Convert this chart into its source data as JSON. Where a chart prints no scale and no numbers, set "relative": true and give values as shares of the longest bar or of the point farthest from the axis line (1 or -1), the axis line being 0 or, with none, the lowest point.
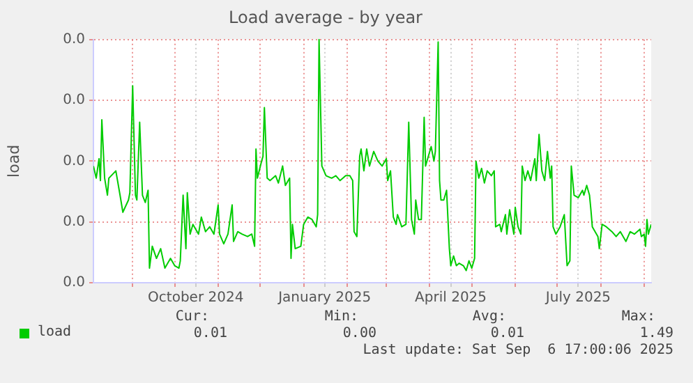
{
  "chart_data": {
    "type": "line",
    "title": "Load average - by year",
    "ylabel": "load",
    "x": [
      "2024-08-04",
      "2024-08-06",
      "2024-08-08",
      "2024-08-09",
      "2024-08-10",
      "2024-08-12",
      "2024-08-14",
      "2024-08-15",
      "2024-08-20",
      "2024-08-23",
      "2024-08-25",
      "2024-08-29",
      "2024-08-30",
      "2024-09-01",
      "2024-09-03",
      "2024-09-04",
      "2024-09-06",
      "2024-09-08",
      "2024-09-10",
      "2024-09-12",
      "2024-09-13",
      "2024-09-15",
      "2024-09-18",
      "2024-09-21",
      "2024-09-24",
      "2024-09-28",
      "2024-10-01",
      "2024-10-04",
      "2024-10-05",
      "2024-10-07",
      "2024-10-09",
      "2024-10-10",
      "2024-10-12",
      "2024-10-14",
      "2024-10-18",
      "2024-10-20",
      "2024-10-23",
      "2024-10-26",
      "2024-10-29",
      "2024-11-01",
      "2024-11-02",
      "2024-11-05",
      "2024-11-08",
      "2024-11-11",
      "2024-11-12",
      "2024-11-15",
      "2024-11-18",
      "2024-11-22",
      "2024-11-25",
      "2024-11-27",
      "2024-11-28",
      "2024-11-29",
      "2024-12-02",
      "2024-12-03",
      "2024-12-04",
      "2024-12-06",
      "2024-12-08",
      "2024-12-12",
      "2024-12-14",
      "2024-12-17",
      "2024-12-19",
      "2024-12-22",
      "2024-12-23",
      "2024-12-24",
      "2024-12-26",
      "2024-12-30",
      "2025-01-01",
      "2025-01-04",
      "2025-01-07",
      "2025-01-10",
      "2025-01-11",
      "2025-01-12",
      "2025-01-14",
      "2025-01-17",
      "2025-01-21",
      "2025-01-24",
      "2025-01-27",
      "2025-01-31",
      "2025-02-03",
      "2025-02-05",
      "2025-02-06",
      "2025-02-08",
      "2025-02-10",
      "2025-02-11",
      "2025-02-13",
      "2025-02-15",
      "2025-02-17",
      "2025-02-20",
      "2025-02-23",
      "2025-02-26",
      "2025-03-01",
      "2025-03-02",
      "2025-03-04",
      "2025-03-06",
      "2025-03-08",
      "2025-03-09",
      "2025-03-12",
      "2025-03-15",
      "2025-03-17",
      "2025-03-19",
      "2025-03-21",
      "2025-03-22",
      "2025-03-24",
      "2025-03-26",
      "2025-03-28",
      "2025-03-29",
      "2025-03-31",
      "2025-04-02",
      "2025-04-04",
      "2025-04-05",
      "2025-04-07",
      "2025-04-08",
      "2025-04-09",
      "2025-04-11",
      "2025-04-13",
      "2025-04-15",
      "2025-04-16",
      "2025-04-18",
      "2025-04-20",
      "2025-04-22",
      "2025-04-25",
      "2025-04-27",
      "2025-04-29",
      "2025-05-01",
      "2025-05-03",
      "2025-05-04",
      "2025-05-06",
      "2025-05-08",
      "2025-05-10",
      "2025-05-12",
      "2025-05-15",
      "2025-05-17",
      "2025-05-18",
      "2025-05-21",
      "2025-05-22",
      "2025-05-25",
      "2025-05-26",
      "2025-05-28",
      "2025-05-31",
      "2025-06-01",
      "2025-06-03",
      "2025-06-05",
      "2025-06-06",
      "2025-06-08",
      "2025-06-10",
      "2025-06-12",
      "2025-06-15",
      "2025-06-16",
      "2025-06-18",
      "2025-06-20",
      "2025-06-22",
      "2025-06-24",
      "2025-06-26",
      "2025-06-27",
      "2025-06-28",
      "2025-06-30",
      "2025-07-03",
      "2025-07-06",
      "2025-07-08",
      "2025-07-10",
      "2025-07-11",
      "2025-07-13",
      "2025-07-16",
      "2025-07-19",
      "2025-07-20",
      "2025-07-22",
      "2025-07-24",
      "2025-07-25",
      "2025-07-26",
      "2025-07-30",
      "2025-07-31",
      "2025-08-02",
      "2025-08-05",
      "2025-08-09",
      "2025-08-12",
      "2025-08-15",
      "2025-08-19",
      "2025-08-22",
      "2025-08-25",
      "2025-08-29",
      "2025-08-30",
      "2025-09-01",
      "2025-09-02",
      "2025-09-03",
      "2025-09-04",
      "2025-09-06"
    ],
    "series": [
      {
        "name": "load",
        "color": "#00cc00",
        "values": [
          0.48,
          0.43,
          0.51,
          0.42,
          0.67,
          0.43,
          0.36,
          0.43,
          0.46,
          0.36,
          0.29,
          0.34,
          0.37,
          0.81,
          0.36,
          0.34,
          0.66,
          0.36,
          0.33,
          0.38,
          0.06,
          0.15,
          0.1,
          0.14,
          0.06,
          0.1,
          0.07,
          0.06,
          0.09,
          0.36,
          0.14,
          0.37,
          0.2,
          0.24,
          0.2,
          0.27,
          0.21,
          0.23,
          0.2,
          0.32,
          0.2,
          0.16,
          0.2,
          0.32,
          0.17,
          0.21,
          0.2,
          0.19,
          0.2,
          0.15,
          0.55,
          0.43,
          0.5,
          0.52,
          0.72,
          0.43,
          0.42,
          0.44,
          0.41,
          0.48,
          0.4,
          0.43,
          0.1,
          0.24,
          0.14,
          0.15,
          0.24,
          0.27,
          0.26,
          0.23,
          0.28,
          1,
          0.48,
          0.44,
          0.43,
          0.44,
          0.42,
          0.44,
          0.44,
          0.42,
          0.21,
          0.19,
          0.52,
          0.55,
          0.46,
          0.55,
          0.48,
          0.54,
          0.5,
          0.48,
          0.51,
          0.42,
          0.46,
          0.27,
          0.24,
          0.28,
          0.23,
          0.24,
          0.66,
          0.26,
          0.2,
          0.34,
          0.26,
          0.26,
          0.68,
          0.48,
          0.52,
          0.56,
          0.5,
          0.54,
          0.99,
          0.42,
          0.34,
          0.34,
          0.38,
          0.14,
          0.07,
          0.11,
          0.07,
          0.08,
          0.07,
          0.05,
          0.09,
          0.06,
          0.1,
          0.5,
          0.43,
          0.47,
          0.41,
          0.46,
          0.44,
          0.46,
          0.23,
          0.24,
          0.21,
          0.28,
          0.2,
          0.3,
          0.2,
          0.31,
          0.23,
          0.2,
          0.48,
          0.42,
          0.46,
          0.42,
          0.51,
          0.42,
          0.61,
          0.46,
          0.42,
          0.54,
          0.43,
          0.48,
          0.23,
          0.2,
          0.23,
          0.28,
          0.07,
          0.09,
          0.48,
          0.36,
          0.35,
          0.38,
          0.36,
          0.4,
          0.36,
          0.3,
          0.23,
          0.19,
          0.14,
          0.24,
          0.23,
          0.21,
          0.19,
          0.21,
          0.17,
          0.21,
          0.2,
          0.22,
          0.19,
          0.2,
          0.15,
          0.26,
          0.2,
          0.24
        ]
      }
    ],
    "relative": true,
    "xlim": [
      "2024-08-04",
      "2025-09-06"
    ],
    "xticks": [
      {
        "value": "2024-09-01",
        "label": null
      },
      {
        "value": "2024-10-01",
        "label": null
      },
      {
        "value": "2024-10-16",
        "label": "October 2024"
      },
      {
        "value": "2024-11-01",
        "label": null
      },
      {
        "value": "2024-12-01",
        "label": null
      },
      {
        "value": "2025-01-01",
        "label": null
      },
      {
        "value": "2025-01-16",
        "label": "January 2025"
      },
      {
        "value": "2025-02-01",
        "label": null
      },
      {
        "value": "2025-03-01",
        "label": null
      },
      {
        "value": "2025-04-01",
        "label": null
      },
      {
        "value": "2025-04-16",
        "label": "April 2025"
      },
      {
        "value": "2025-05-01",
        "label": null
      },
      {
        "value": "2025-06-01",
        "label": null
      },
      {
        "value": "2025-07-01",
        "label": null
      },
      {
        "value": "2025-07-16",
        "label": "July 2025"
      },
      {
        "value": "2025-08-01",
        "label": null
      },
      {
        "value": "2025-09-01",
        "label": null
      }
    ],
    "grid": true,
    "legend": "bottom left",
    "marker": "none",
    "line_style": "solid",
    "annotations": [
      "Cur:",
      "0.01",
      "Min:",
      "0.00",
      "Avg:",
      "0.01",
      "Max:",
      "1.49",
      "Last update: Sat Sep  6 17:00:06 2025",
      "0.0",
      "0.0",
      "0.0",
      "0.0",
      "0.0"
    ]
  }
}
